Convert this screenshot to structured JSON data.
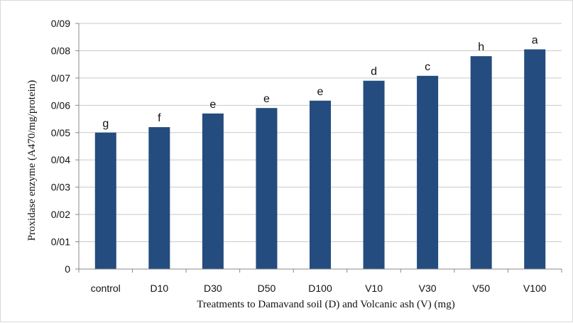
{
  "chart_data": {
    "type": "bar",
    "categories": [
      "control",
      "D10",
      "D30",
      "D50",
      "D100",
      "V10",
      "V30",
      "V50",
      "V100"
    ],
    "values": [
      0.05,
      0.052,
      0.057,
      0.059,
      0.0617,
      0.069,
      0.0708,
      0.078,
      0.0805
    ],
    "bar_labels": [
      "g",
      "f",
      "e",
      "e",
      "e",
      "d",
      "c",
      "h",
      "a"
    ],
    "ylim": [
      0,
      0.09
    ],
    "yticks": [
      0,
      0.01,
      0.02,
      0.03,
      0.04,
      0.05,
      0.06,
      0.07,
      0.08,
      0.09
    ],
    "ytick_labels": [
      "0",
      "0/01",
      "0/02",
      "0/03",
      "0/04",
      "0/05",
      "0/06",
      "0/07",
      "0/08",
      "0/09"
    ],
    "xlabel": "Treatments to Damavand soil (D) and Volcanic  ash (V)  (mg)",
    "ylabel": "Proxidase enzyme (A470/mg/protein)",
    "title": "",
    "grid": true,
    "colors": {
      "bar": "#244C7E",
      "grid": "#C9C9C9",
      "axis": "#8A8A8A"
    }
  }
}
